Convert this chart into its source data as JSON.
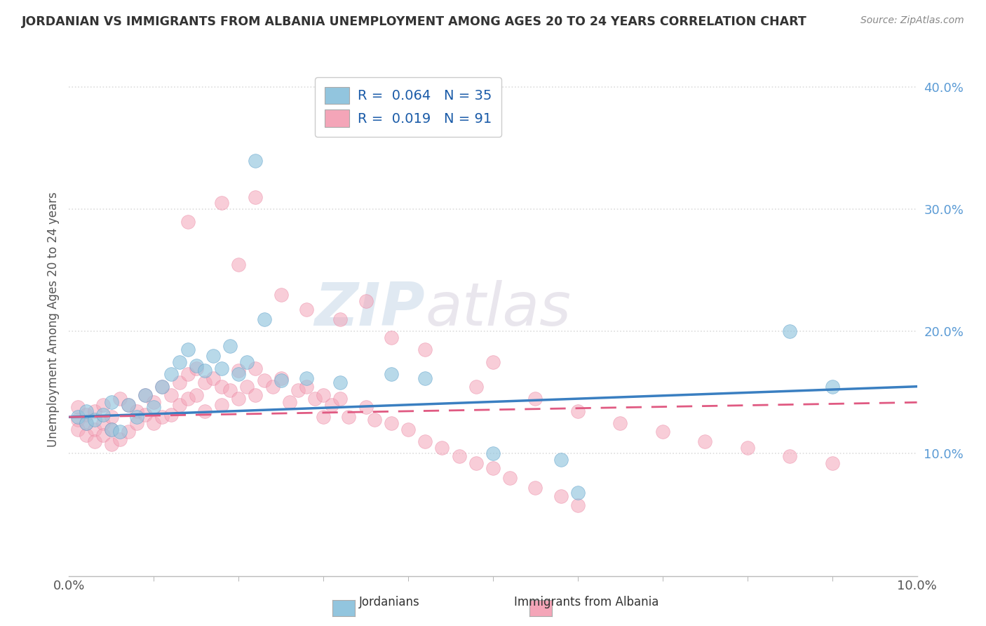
{
  "title": "JORDANIAN VS IMMIGRANTS FROM ALBANIA UNEMPLOYMENT AMONG AGES 20 TO 24 YEARS CORRELATION CHART",
  "source": "Source: ZipAtlas.com",
  "ylabel": "Unemployment Among Ages 20 to 24 years",
  "legend_r1": "R =  0.064   N = 35",
  "legend_r2": "R =  0.019   N = 91",
  "legend_label1": "Jordanians",
  "legend_label2": "Immigrants from Albania",
  "watermark_zip": "ZIP",
  "watermark_atlas": "atlas",
  "xlim": [
    0.0,
    0.1
  ],
  "ylim": [
    0.0,
    0.42
  ],
  "ytick_vals": [
    0.1,
    0.2,
    0.3,
    0.4
  ],
  "ytick_labels": [
    "10.0%",
    "20.0%",
    "30.0%",
    "40.0%"
  ],
  "xtick_vals": [
    0.0,
    0.1
  ],
  "xtick_labels": [
    "0.0%",
    "10.0%"
  ],
  "color_jordan": "#92c5de",
  "color_albania": "#f4a5b8",
  "color_jordan_edge": "#5a9ec9",
  "color_albania_edge": "#e87a9a",
  "color_jordan_line": "#3a7fc1",
  "color_albania_line": "#e05a82",
  "color_ytick": "#5b9bd5",
  "color_xtick": "#555555",
  "color_title": "#333333",
  "color_source": "#888888",
  "color_grid": "#dddddd",
  "color_ylabel": "#555555",
  "background": "#ffffff",
  "jordan_x": [
    0.001,
    0.002,
    0.002,
    0.003,
    0.004,
    0.005,
    0.005,
    0.006,
    0.007,
    0.008,
    0.009,
    0.01,
    0.011,
    0.012,
    0.013,
    0.014,
    0.015,
    0.016,
    0.017,
    0.018,
    0.019,
    0.02,
    0.021,
    0.023,
    0.025,
    0.028,
    0.022,
    0.032,
    0.038,
    0.042,
    0.05,
    0.058,
    0.06,
    0.085,
    0.09
  ],
  "jordan_y": [
    0.13,
    0.125,
    0.135,
    0.128,
    0.132,
    0.12,
    0.142,
    0.118,
    0.14,
    0.13,
    0.148,
    0.138,
    0.155,
    0.165,
    0.175,
    0.185,
    0.172,
    0.168,
    0.18,
    0.17,
    0.188,
    0.165,
    0.175,
    0.21,
    0.16,
    0.162,
    0.34,
    0.158,
    0.165,
    0.162,
    0.1,
    0.095,
    0.068,
    0.2,
    0.155
  ],
  "albania_x": [
    0.001,
    0.001,
    0.001,
    0.002,
    0.002,
    0.002,
    0.003,
    0.003,
    0.003,
    0.004,
    0.004,
    0.004,
    0.005,
    0.005,
    0.005,
    0.006,
    0.006,
    0.007,
    0.007,
    0.008,
    0.008,
    0.009,
    0.009,
    0.01,
    0.01,
    0.011,
    0.011,
    0.012,
    0.012,
    0.013,
    0.013,
    0.014,
    0.014,
    0.015,
    0.015,
    0.016,
    0.016,
    0.017,
    0.018,
    0.018,
    0.019,
    0.02,
    0.02,
    0.021,
    0.022,
    0.022,
    0.023,
    0.024,
    0.025,
    0.026,
    0.027,
    0.028,
    0.029,
    0.03,
    0.03,
    0.031,
    0.032,
    0.033,
    0.035,
    0.036,
    0.038,
    0.04,
    0.042,
    0.044,
    0.046,
    0.048,
    0.05,
    0.052,
    0.055,
    0.058,
    0.06,
    0.014,
    0.018,
    0.02,
    0.022,
    0.025,
    0.028,
    0.032,
    0.035,
    0.038,
    0.042,
    0.048,
    0.055,
    0.06,
    0.065,
    0.07,
    0.075,
    0.08,
    0.085,
    0.09,
    0.05
  ],
  "albania_y": [
    0.128,
    0.138,
    0.12,
    0.132,
    0.115,
    0.125,
    0.135,
    0.12,
    0.11,
    0.14,
    0.125,
    0.115,
    0.13,
    0.12,
    0.108,
    0.145,
    0.112,
    0.14,
    0.118,
    0.135,
    0.125,
    0.148,
    0.132,
    0.142,
    0.125,
    0.155,
    0.13,
    0.148,
    0.132,
    0.158,
    0.14,
    0.165,
    0.145,
    0.17,
    0.148,
    0.158,
    0.135,
    0.162,
    0.155,
    0.14,
    0.152,
    0.168,
    0.145,
    0.155,
    0.17,
    0.148,
    0.16,
    0.155,
    0.162,
    0.142,
    0.152,
    0.155,
    0.145,
    0.148,
    0.13,
    0.14,
    0.145,
    0.13,
    0.138,
    0.128,
    0.125,
    0.12,
    0.11,
    0.105,
    0.098,
    0.092,
    0.088,
    0.08,
    0.072,
    0.065,
    0.058,
    0.29,
    0.305,
    0.255,
    0.31,
    0.23,
    0.218,
    0.21,
    0.225,
    0.195,
    0.185,
    0.155,
    0.145,
    0.135,
    0.125,
    0.118,
    0.11,
    0.105,
    0.098,
    0.092,
    0.175
  ]
}
